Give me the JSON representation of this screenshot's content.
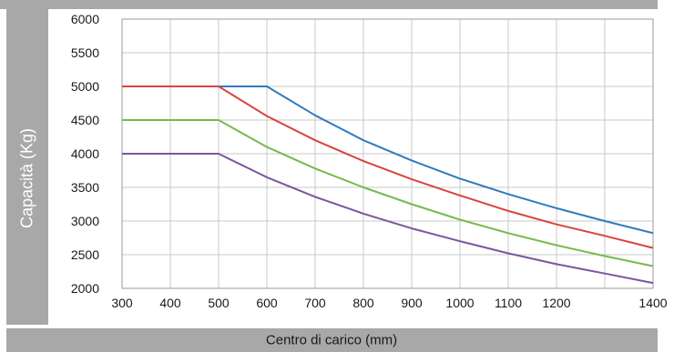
{
  "chart_data": {
    "type": "line",
    "title": "",
    "xlabel": "Centro di carico (mm)",
    "ylabel": "Capacità (Kg)",
    "xlim": [
      300,
      1400
    ],
    "ylim": [
      2000,
      6000
    ],
    "x_ticks": [
      300,
      400,
      500,
      600,
      700,
      800,
      900,
      1000,
      1100,
      1200,
      1400
    ],
    "x_ticks_note_skip": "placeholder removed",
    "y_ticks": [
      2000,
      2500,
      3000,
      3500,
      4000,
      4500,
      5000,
      5500,
      6000
    ],
    "grid": true,
    "legend": "none",
    "series": [
      {
        "color": "#2e7bbf",
        "x": [
          300,
          500,
          600,
          700,
          800,
          900,
          1000,
          1100,
          1200,
          1300,
          1400
        ],
        "y": [
          5000,
          5000,
          5000,
          4570,
          4200,
          3900,
          3630,
          3400,
          3190,
          3000,
          2820
        ]
      },
      {
        "color": "#d9443f",
        "x": [
          300,
          500,
          600,
          700,
          800,
          900,
          1000,
          1100,
          1200,
          1300,
          1400
        ],
        "y": [
          5000,
          5000,
          4560,
          4200,
          3890,
          3620,
          3380,
          3150,
          2950,
          2780,
          2600
        ]
      },
      {
        "color": "#79b94c",
        "x": [
          300,
          500,
          600,
          700,
          800,
          900,
          1000,
          1100,
          1200,
          1300,
          1400
        ],
        "y": [
          4500,
          4500,
          4100,
          3780,
          3500,
          3250,
          3020,
          2820,
          2640,
          2480,
          2330
        ]
      },
      {
        "color": "#7b569e",
        "x": [
          300,
          500,
          600,
          700,
          800,
          900,
          1000,
          1100,
          1200,
          1300,
          1400
        ],
        "y": [
          4000,
          4000,
          3650,
          3360,
          3110,
          2890,
          2700,
          2520,
          2360,
          2220,
          2080
        ]
      }
    ]
  }
}
